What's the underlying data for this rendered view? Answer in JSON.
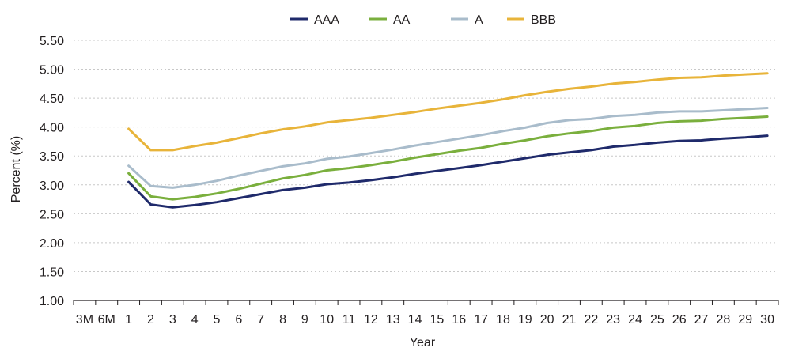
{
  "chart_data": {
    "type": "line",
    "title": "",
    "xlabel": "Year",
    "ylabel": "Percent (%)",
    "ylim": [
      1.0,
      5.5
    ],
    "yticks": [
      "1.00",
      "1.50",
      "2.00",
      "2.50",
      "3.00",
      "3.50",
      "4.00",
      "4.50",
      "5.00",
      "5.50"
    ],
    "grid": "horizontal",
    "legend_position": "top-center",
    "categories": [
      "3M",
      "6M",
      "1",
      "2",
      "3",
      "4",
      "5",
      "6",
      "7",
      "8",
      "9",
      "10",
      "11",
      "12",
      "13",
      "14",
      "15",
      "16",
      "17",
      "18",
      "19",
      "20",
      "21",
      "22",
      "23",
      "24",
      "25",
      "26",
      "27",
      "28",
      "29",
      "30"
    ],
    "series": [
      {
        "name": "AAA",
        "color": "#1f2a6b",
        "values": [
          null,
          null,
          3.05,
          2.66,
          2.61,
          2.65,
          2.7,
          2.77,
          2.84,
          2.91,
          2.95,
          3.01,
          3.04,
          3.08,
          3.13,
          3.19,
          3.24,
          3.29,
          3.34,
          3.4,
          3.46,
          3.52,
          3.56,
          3.6,
          3.66,
          3.69,
          3.73,
          3.76,
          3.77,
          3.8,
          3.82,
          3.85
        ]
      },
      {
        "name": "AA",
        "color": "#7aaf3d",
        "values": [
          null,
          null,
          3.2,
          2.8,
          2.75,
          2.79,
          2.85,
          2.93,
          3.02,
          3.11,
          3.17,
          3.25,
          3.29,
          3.34,
          3.4,
          3.47,
          3.53,
          3.59,
          3.64,
          3.71,
          3.77,
          3.84,
          3.89,
          3.93,
          3.99,
          4.02,
          4.07,
          4.1,
          4.11,
          4.14,
          4.16,
          4.18
        ]
      },
      {
        "name": "A",
        "color": "#a9bccb",
        "values": [
          null,
          null,
          3.33,
          2.98,
          2.95,
          3.0,
          3.07,
          3.16,
          3.24,
          3.32,
          3.37,
          3.45,
          3.49,
          3.55,
          3.61,
          3.68,
          3.74,
          3.8,
          3.86,
          3.93,
          3.99,
          4.07,
          4.12,
          4.14,
          4.19,
          4.21,
          4.25,
          4.27,
          4.27,
          4.29,
          4.31,
          4.33
        ]
      },
      {
        "name": "BBB",
        "color": "#e8b43a",
        "values": [
          null,
          null,
          3.97,
          3.6,
          3.6,
          3.67,
          3.73,
          3.81,
          3.89,
          3.96,
          4.01,
          4.08,
          4.12,
          4.16,
          4.21,
          4.26,
          4.32,
          4.37,
          4.42,
          4.48,
          4.55,
          4.61,
          4.66,
          4.7,
          4.75,
          4.78,
          4.82,
          4.85,
          4.86,
          4.89,
          4.91,
          4.93
        ]
      }
    ]
  }
}
